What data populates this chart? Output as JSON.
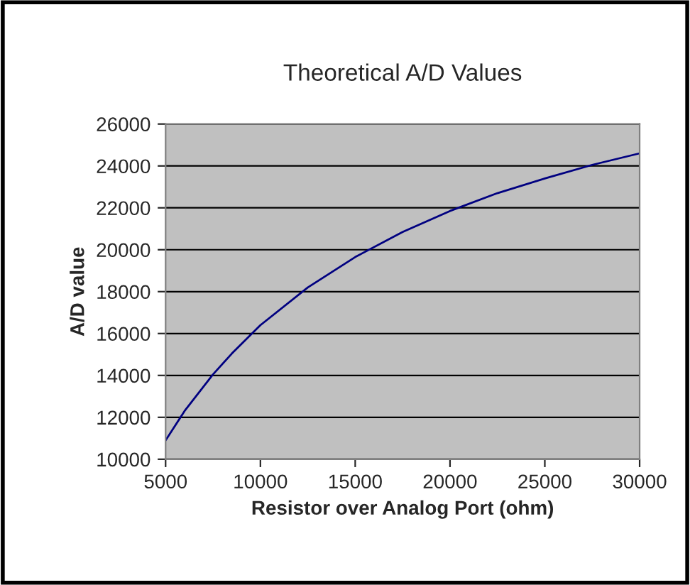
{
  "chart_data": {
    "type": "line",
    "title": "Theoretical A/D Values",
    "xlabel": "Resistor over Analog Port (ohm)",
    "ylabel": "A/D value",
    "x": [
      5000,
      6000,
      7500,
      8500,
      10000,
      12500,
      15000,
      17500,
      20000,
      22500,
      25000,
      27500,
      30000
    ],
    "series": [
      {
        "color": "#000080",
        "values": [
          10900,
          12300,
          14050,
          15050,
          16400,
          18200,
          19650,
          20850,
          21850,
          22700,
          23400,
          24050,
          24600
        ]
      }
    ],
    "xlim": [
      5000,
      30000
    ],
    "xticks": [
      5000,
      10000,
      15000,
      20000,
      25000,
      30000
    ],
    "ylim": [
      10000,
      26000
    ],
    "yticks": [
      10000,
      12000,
      14000,
      16000,
      18000,
      20000,
      22000,
      24000,
      26000
    ],
    "grid": "y",
    "legend": false,
    "marker": "none",
    "line_style": "solid"
  }
}
